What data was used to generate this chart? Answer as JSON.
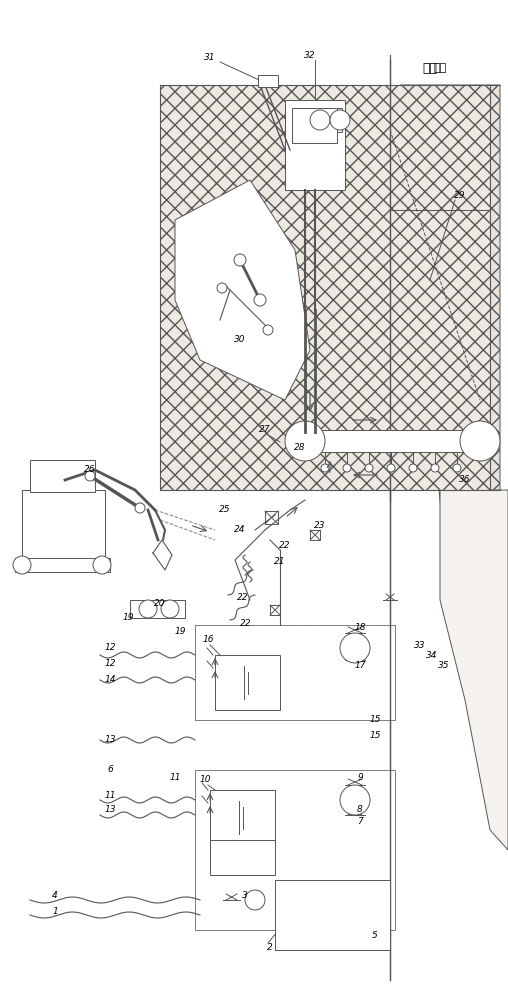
{
  "bg_color": "#ffffff",
  "line_color": "#555555",
  "figsize": [
    5.08,
    10.0
  ],
  "dpi": 100,
  "soil_hatch": "xx",
  "soil_color": "#f0ede8"
}
